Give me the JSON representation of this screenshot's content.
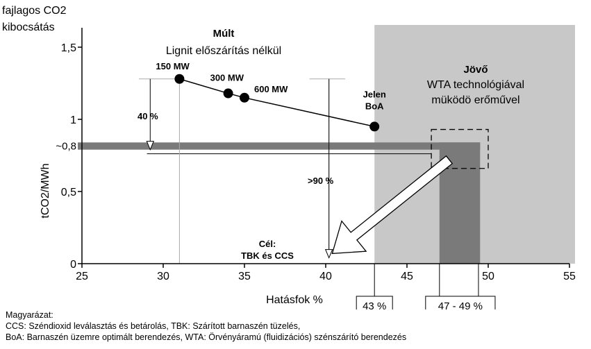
{
  "chart_data": {
    "type": "scatter",
    "title": "",
    "ylabel_top": [
      "fajlagos CO2",
      "kibocsátás"
    ],
    "ylabel": "tCO2/MWh",
    "xlabel": "Hatásfok %",
    "xlim": [
      25,
      55
    ],
    "ylim": [
      0,
      1.5
    ],
    "x_ticks": [
      "25",
      "30",
      "35",
      "40",
      "45",
      "50",
      "55"
    ],
    "y_ticks": [
      {
        "value": 0,
        "label": "0"
      },
      {
        "value": 0.5,
        "label": "0,5"
      },
      {
        "value": 1,
        "label": "1"
      },
      {
        "value": 1.5,
        "label": "1,5"
      }
    ],
    "y_extra_label": {
      "value": 0.8,
      "label": "~0,8"
    },
    "series": [
      {
        "points": [
          {
            "x": 31,
            "y": 1.28,
            "label": "150 MW"
          },
          {
            "x": 34,
            "y": 1.18,
            "label": "300 MW"
          },
          {
            "x": 35,
            "y": 1.15,
            "label": "600 MW"
          },
          {
            "x": 43,
            "y": 0.95,
            "label": "Jelen BoA"
          }
        ]
      }
    ],
    "regions": {
      "future": {
        "x_from": 43,
        "x_to": 55,
        "label": "Jövő",
        "sublabel": [
          "WTA technológiával",
          "müködö erőművel"
        ]
      },
      "past": {
        "label": "Múlt",
        "sublabel": "Lignit előszárítás nélkül"
      }
    },
    "bands": {
      "horizontal": {
        "y_from": 0.79,
        "y_to": 0.84,
        "x_from": 25,
        "x_to": 49.5
      },
      "vertical": {
        "x_from": 47,
        "x_to": 49.5
      }
    },
    "annotations": {
      "reduction_40": "40 %",
      "reduction_90": ">90 %",
      "goal": [
        "Cél:",
        "TBK és CCS"
      ],
      "box_43": "43 %",
      "box_47_49": "47 - 49 %"
    }
  },
  "legend": {
    "title": "Magyarázat:",
    "lines": [
      "CCS: Széndioxid leválasztás és betárolás, TBK: Szárított barnaszén tüzelés,",
      "BoA: Barnaszén üzemre optimált berendezés, WTA: Örvényáramú (fluidizációs) szénszárító berendezés"
    ]
  },
  "colors": {
    "future_region": "#c8c8c8",
    "band": "#7a7a7a",
    "axis": "#000000"
  }
}
